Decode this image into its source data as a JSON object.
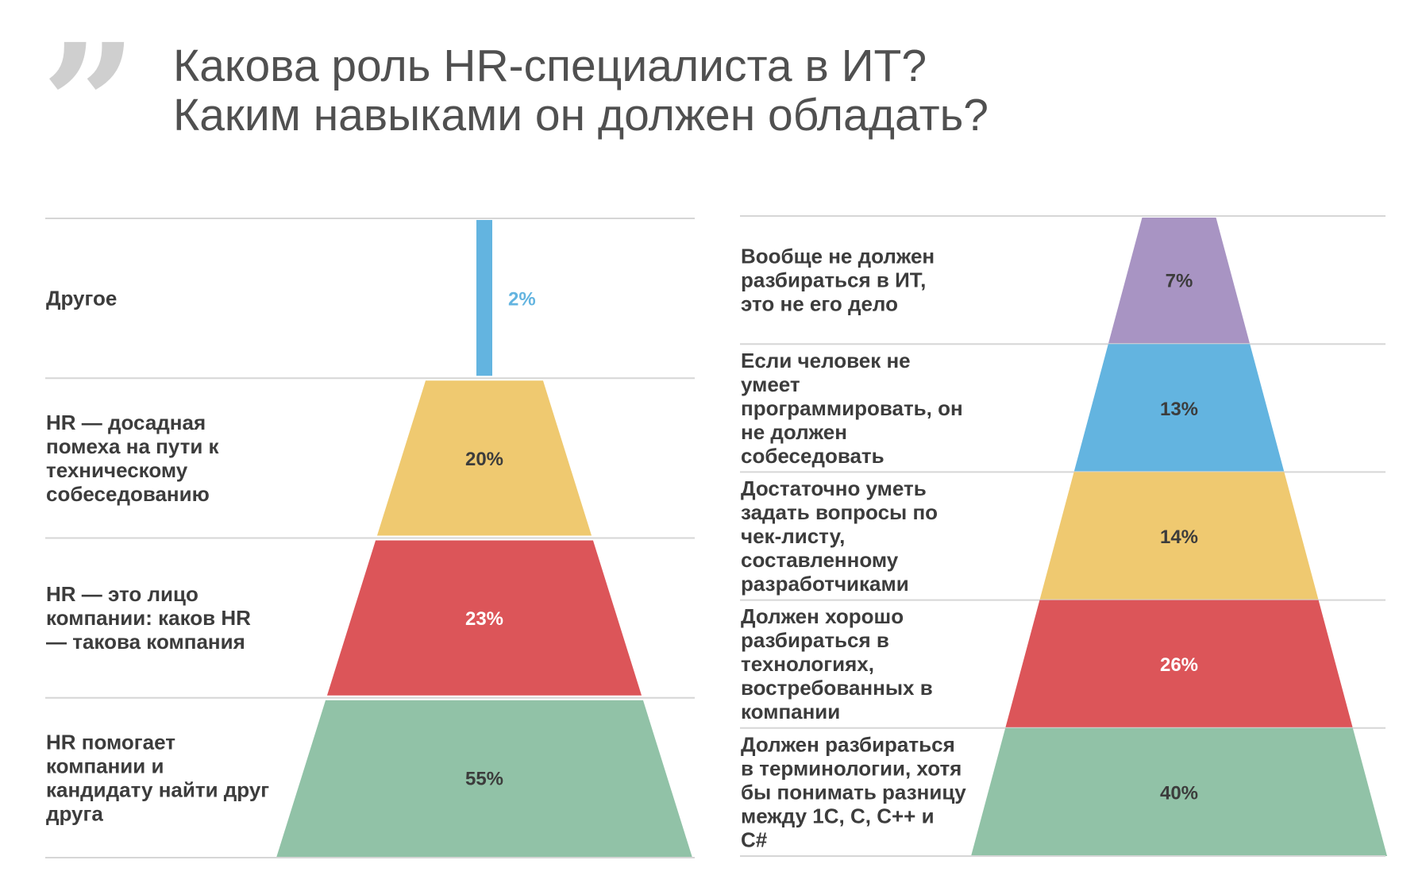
{
  "header": {
    "quote_mark": "”",
    "title_lines": [
      "Какова роль HR-специалиста в ИТ?",
      "Каким навыками он должен обладать?"
    ]
  },
  "colors": {
    "purple": "#a894c3",
    "blue": "#63b4e0",
    "yellow": "#efc970",
    "red": "#dc5559",
    "green": "#91c2a7",
    "divider": "#d6d6d6"
  },
  "chart_data": [
    {
      "type": "funnel",
      "title": "",
      "segments": [
        {
          "label_lines": [
            "Другое"
          ],
          "value": 2,
          "value_label": "2%",
          "color": "#63b4e0",
          "value_color": "#63b4e0"
        },
        {
          "label_lines": [
            "HR — досадная",
            "помеха на пути к",
            "техническому",
            "собеседованию"
          ],
          "value": 20,
          "value_label": "20%",
          "color": "#efc970",
          "value_color": "#3c3c3c"
        },
        {
          "label_lines": [
            "HR — это лицо",
            "компании: каков HR",
            "— такова компания"
          ],
          "value": 23,
          "value_label": "23%",
          "color": "#dc5559",
          "value_color": "#ffffff"
        },
        {
          "label_lines": [
            "HR помогает",
            "компании и",
            "кандидату найти друг",
            "друга"
          ],
          "value": 55,
          "value_label": "55%",
          "color": "#91c2a7",
          "value_color": "#3c3c3c"
        }
      ]
    },
    {
      "type": "funnel",
      "title": "",
      "segments": [
        {
          "label_lines": [
            "Вообще не должен",
            "разбираться в ИТ,",
            "это не его дело"
          ],
          "value": 7,
          "value_label": "7%",
          "color": "#a894c3",
          "value_color": "#3c3c3c"
        },
        {
          "label_lines": [
            "Если человек не",
            "умеет",
            "программировать, он",
            "не должен",
            "собеседовать"
          ],
          "value": 13,
          "value_label": "13%",
          "color": "#63b4e0",
          "value_color": "#3c3c3c"
        },
        {
          "label_lines": [
            "Достаточно уметь",
            "задать вопросы по",
            "чек-листу,",
            "составленному",
            "разработчиками"
          ],
          "value": 14,
          "value_label": "14%",
          "color": "#efc970",
          "value_color": "#3c3c3c"
        },
        {
          "label_lines": [
            "Должен хорошо",
            "разбираться в",
            "технологиях,",
            "востребованных в",
            "компании"
          ],
          "value": 26,
          "value_label": "26%",
          "color": "#dc5559",
          "value_color": "#ffffff"
        },
        {
          "label_lines": [
            "Должен разбираться",
            "в терминологии, хотя",
            "бы понимать разницу",
            "между 1С, C, C++ и",
            "C#"
          ],
          "value": 40,
          "value_label": "40%",
          "color": "#91c2a7",
          "value_color": "#3c3c3c"
        }
      ]
    }
  ]
}
